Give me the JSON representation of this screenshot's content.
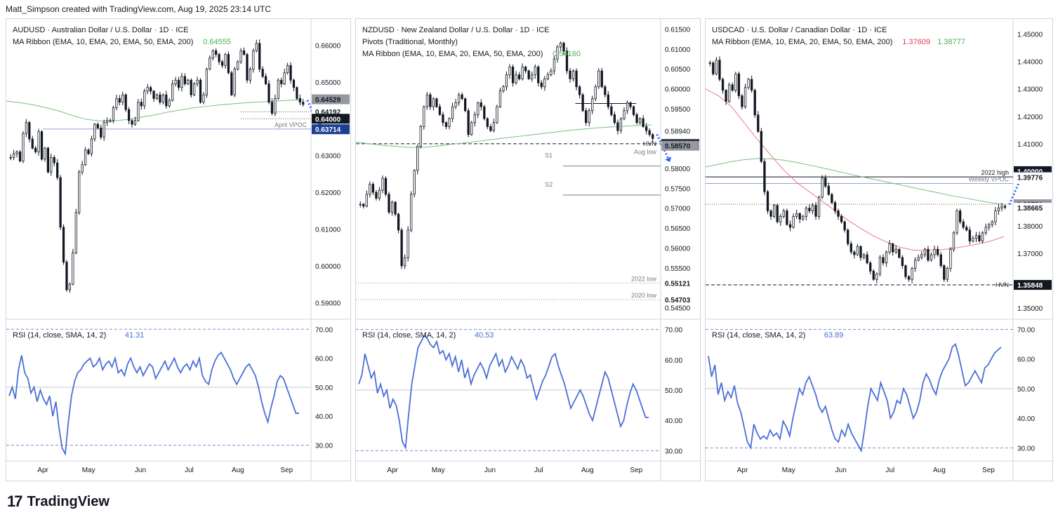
{
  "header": {
    "attribution": "Matt_Simpson created with TradingView.com, Aug 19, 2025 23:14 UTC"
  },
  "footer": {
    "brand": "TradingView",
    "logo_icon": "tradingview-logo-icon"
  },
  "colors": {
    "ma_slow": "#7cbd7d",
    "ma_fast": "#e8798a",
    "rsi": "#4a6fd7",
    "candle": "#131722",
    "arrow": "#2962ff",
    "level_dark": "#131722",
    "level_blue": "#1c3f94",
    "level_gray": "#787b86"
  },
  "chart_data": [
    {
      "type": "candlestick",
      "symbol": "AUDUSD",
      "title": "AUDUSD · Australian Dollar / U.S. Dollar · 1D · ICE",
      "indicator": "MA Ribbon (EMA, 10, EMA, 20, EMA, 50, EMA, 200)",
      "indicator_value": "0.64555",
      "x_ticks": [
        "Apr",
        "May",
        "Jun",
        "Jul",
        "Aug",
        "Sep"
      ],
      "ylim": [
        0.587,
        0.666
      ],
      "y_ticks": [
        "0.66000",
        "0.65000",
        "0.64000",
        "0.63000",
        "0.62000",
        "0.61000",
        "0.60000",
        "0.59000"
      ],
      "price_tags": [
        {
          "label": "0.64529",
          "value": 0.64529,
          "style": "gray"
        },
        {
          "label": "0.64192",
          "value": 0.64192,
          "style": "light"
        },
        {
          "label": "0.64000",
          "value": 0.64,
          "style": "dark"
        },
        {
          "label": "0.63714",
          "value": 0.63714,
          "style": "blue"
        }
      ],
      "levels": [
        {
          "label": "April VPOC",
          "value": 0.6372,
          "dash": "solid",
          "color": "#8fa5d8"
        },
        {
          "label": "",
          "value": 0.64192,
          "dash": "dot",
          "color": "#555"
        },
        {
          "label": "",
          "value": 0.64,
          "dash": "dot",
          "color": "#555"
        }
      ],
      "ohlc_path": [
        0.6295,
        0.6305,
        0.631,
        0.6285,
        0.636,
        0.639,
        0.6345,
        0.632,
        0.631,
        0.6365,
        0.629,
        0.632,
        0.6255,
        0.6295,
        0.628,
        0.624,
        0.6105,
        0.601,
        0.5935,
        0.595,
        0.6035,
        0.6145,
        0.6255,
        0.6275,
        0.6315,
        0.6305,
        0.6345,
        0.6385,
        0.6375,
        0.635,
        0.639,
        0.6395,
        0.6395,
        0.643,
        0.6455,
        0.6445,
        0.6465,
        0.6425,
        0.6395,
        0.6385,
        0.6395,
        0.6445,
        0.6435,
        0.6475,
        0.6485,
        0.6475,
        0.6455,
        0.6465,
        0.6445,
        0.6465,
        0.6435,
        0.645,
        0.6495,
        0.6505,
        0.6485,
        0.6515,
        0.6495,
        0.6505,
        0.6465,
        0.6495,
        0.6505,
        0.6445,
        0.6465,
        0.6535,
        0.6565,
        0.6585,
        0.6575,
        0.6555,
        0.6545,
        0.6575,
        0.6525,
        0.6465,
        0.6535,
        0.6555,
        0.6585,
        0.6575,
        0.6505,
        0.6535,
        0.6585,
        0.6605,
        0.6535,
        0.6515,
        0.6495,
        0.6445,
        0.6415,
        0.6455,
        0.6505,
        0.6495,
        0.6525,
        0.6545,
        0.6505,
        0.6485,
        0.6455,
        0.6445,
        0.6439
      ],
      "ma_slow_path": [
        0.6448,
        0.6444,
        0.6438,
        0.643,
        0.642,
        0.6408,
        0.6398,
        0.6394,
        0.6394,
        0.6398,
        0.6404,
        0.641,
        0.6418,
        0.6424,
        0.643,
        0.6434,
        0.6438,
        0.6441,
        0.6444,
        0.6446,
        0.6448,
        0.645,
        0.6452
      ],
      "rsi": {
        "label": "RSI (14, close, SMA, 14, 2)",
        "value": "41.31",
        "ylim": [
          26,
          72
        ],
        "y_ticks": [
          "70.00",
          "60.00",
          "50.00",
          "40.00",
          "30.00"
        ],
        "values": [
          47,
          50,
          46,
          56,
          61,
          55,
          53,
          48,
          50,
          45,
          49,
          46,
          44,
          47,
          40,
          45,
          36,
          29,
          27,
          38,
          47,
          52,
          55,
          56,
          58,
          59,
          60,
          57,
          58,
          60,
          56,
          58,
          59,
          57,
          60,
          55,
          56,
          54,
          58,
          60,
          57,
          55,
          57,
          54,
          56,
          58,
          57,
          53,
          55,
          57,
          59,
          56,
          58,
          60,
          57,
          55,
          57,
          58,
          56,
          59,
          57,
          60,
          54,
          52,
          51,
          56,
          59,
          61,
          62,
          60,
          58,
          56,
          53,
          51,
          53,
          55,
          57,
          58,
          56,
          54,
          50,
          45,
          41,
          38,
          43,
          47,
          52,
          54,
          53,
          50,
          47,
          44,
          41,
          41
        ]
      },
      "annotations": [
        {
          "type": "arrow",
          "direction": "down-right"
        }
      ]
    },
    {
      "type": "candlestick",
      "symbol": "NZDUSD",
      "title": "NZDUSD · New Zealand Dollar / U.S. Dollar · 1D · ICE",
      "indicator_pivots": "Pivots (Traditional, Monthly)",
      "indicator": "MA Ribbon (EMA, 10, EMA, 20, EMA, 50, EMA, 200)",
      "indicator_value": "0.59160",
      "x_ticks": [
        "Apr",
        "May",
        "Jun",
        "Jul",
        "Aug",
        "Sep"
      ],
      "ylim": [
        0.5435,
        0.6165
      ],
      "y_ticks": [
        "0.61500",
        "0.61000",
        "0.60500",
        "0.60000",
        "0.59500",
        "0.58940",
        "0.58000",
        "0.57500",
        "0.57000",
        "0.56500",
        "0.56000",
        "0.55500",
        "0.54500"
      ],
      "price_tags": [
        {
          "label": "0.58611",
          "value": 0.58611,
          "style": "dark"
        },
        {
          "label": "0.58570",
          "value": 0.5857,
          "style": "gray"
        },
        {
          "label": "0.55121",
          "value": 0.55121,
          "style": "light"
        },
        {
          "label": "0.54703",
          "value": 0.54703,
          "style": "light"
        }
      ],
      "levels": [
        {
          "label": "HVN",
          "value": 0.5862,
          "dash": "dash",
          "color": "#131722"
        },
        {
          "label": "Aug low",
          "value": 0.5857,
          "dash": "none",
          "color": "#787b86"
        },
        {
          "label": "S1",
          "value": 0.5806,
          "dash": "solid",
          "color": "#787b86"
        },
        {
          "label": "S2",
          "value": 0.5733,
          "dash": "solid",
          "color": "#787b86"
        },
        {
          "label": "2022 low",
          "value": 0.5512,
          "dash": "dot",
          "color": "#999"
        },
        {
          "label": "2020 low",
          "value": 0.547,
          "dash": "dot",
          "color": "#999"
        }
      ],
      "ohlc_path": [
        0.571,
        0.5705,
        0.5735,
        0.576,
        0.574,
        0.5725,
        0.5745,
        0.5775,
        0.5735,
        0.569,
        0.5715,
        0.5685,
        0.5645,
        0.5555,
        0.5575,
        0.5645,
        0.5735,
        0.5795,
        0.5855,
        0.5905,
        0.5955,
        0.5985,
        0.5955,
        0.5975,
        0.5955,
        0.5935,
        0.5915,
        0.5905,
        0.5925,
        0.5955,
        0.5965,
        0.5985,
        0.5975,
        0.5945,
        0.5885,
        0.5915,
        0.5935,
        0.5965,
        0.5955,
        0.5925,
        0.5905,
        0.5895,
        0.5915,
        0.5955,
        0.5995,
        0.6005,
        0.6035,
        0.6055,
        0.6015,
        0.6035,
        0.6025,
        0.6055,
        0.6045,
        0.6025,
        0.6035,
        0.6055,
        0.6015,
        0.6005,
        0.6025,
        0.6035,
        0.6045,
        0.6075,
        0.6105,
        0.6115,
        0.6095,
        0.6045,
        0.6025,
        0.6045,
        0.6005,
        0.5985,
        0.5945,
        0.5915,
        0.5945,
        0.5975,
        0.6005,
        0.6045,
        0.6005,
        0.5985,
        0.5955,
        0.5935,
        0.5915,
        0.5895,
        0.5925,
        0.5945,
        0.5965,
        0.5955,
        0.5935,
        0.5915,
        0.5925,
        0.5905,
        0.5895,
        0.5885,
        0.5875
      ],
      "ma_slow_path": [
        0.5866,
        0.5862,
        0.5858,
        0.5855,
        0.5853,
        0.5853,
        0.5856,
        0.586,
        0.5864,
        0.5868,
        0.5872,
        0.5876,
        0.588,
        0.5884,
        0.5888,
        0.5892,
        0.5896,
        0.5899,
        0.5902,
        0.5904,
        0.5906,
        0.5908,
        0.5909
      ],
      "rsi": {
        "label": "RSI (14, close, SMA, 14, 2)",
        "value": "40.53",
        "ylim": [
          28,
          72
        ],
        "y_ticks": [
          "70.00",
          "60.00",
          "50.00",
          "40.00",
          "30.00"
        ],
        "values": [
          52,
          55,
          62,
          58,
          54,
          56,
          49,
          52,
          48,
          50,
          44,
          47,
          45,
          40,
          33,
          31,
          42,
          52,
          58,
          64,
          66,
          68,
          67,
          65,
          64,
          66,
          62,
          63,
          60,
          62,
          58,
          61,
          56,
          60,
          54,
          57,
          52,
          55,
          57,
          59,
          57,
          54,
          58,
          60,
          62,
          58,
          60,
          56,
          58,
          61,
          59,
          57,
          60,
          58,
          54,
          55,
          51,
          47,
          50,
          53,
          55,
          58,
          61,
          62,
          58,
          55,
          52,
          48,
          44,
          46,
          48,
          50,
          48,
          45,
          42,
          40,
          44,
          48,
          52,
          56,
          54,
          50,
          46,
          42,
          38,
          40,
          45,
          49,
          52,
          50,
          47,
          44,
          41,
          41
        ]
      },
      "annotations": [
        {
          "type": "arrow",
          "direction": "down-right"
        }
      ]
    },
    {
      "type": "candlestick",
      "symbol": "USDCAD",
      "title": "USDCAD · U.S. Dollar / Canadian Dollar · 1D · ICE",
      "indicator": "MA Ribbon (EMA, 10, EMA, 20, EMA, 50, EMA, 200)",
      "indicator_values": [
        "1.37609",
        "1.38777"
      ],
      "x_ticks": [
        "Apr",
        "May",
        "Jun",
        "Jul",
        "Aug",
        "Sep"
      ],
      "ylim": [
        1.348,
        1.454
      ],
      "y_ticks": [
        "1.45000",
        "1.44000",
        "1.43000",
        "1.42000",
        "1.41000",
        "1.38000",
        "1.37000",
        "1.35000"
      ],
      "price_tags": [
        {
          "label": "1.40000",
          "value": 1.4,
          "style": "dark"
        },
        {
          "label": "1.39790",
          "value": 1.3979,
          "style": "blue"
        },
        {
          "label": "1.39776",
          "value": 1.39776,
          "style": "light"
        },
        {
          "label": "1.38791",
          "value": 1.38791,
          "style": "gray"
        },
        {
          "label": "1.38665",
          "value": 1.38665,
          "style": "light"
        },
        {
          "label": "1.35848",
          "value": 1.35848,
          "style": "dark"
        }
      ],
      "levels": [
        {
          "label": "2022 high",
          "value": 1.3979,
          "dash": "solid",
          "color": "#131722"
        },
        {
          "label": "Weekly VPOC",
          "value": 1.3955,
          "dash": "solid",
          "color": "#8fa5d8"
        },
        {
          "label": "HVN",
          "value": 1.3585,
          "dash": "dash",
          "color": "#131722"
        },
        {
          "label": "",
          "value": 1.3879,
          "dash": "dot",
          "color": "#555"
        }
      ],
      "ohlc_path": [
        1.4395,
        1.4355,
        1.4405,
        1.4335,
        1.4295,
        1.4255,
        1.4315,
        1.4295,
        1.4355,
        1.4275,
        1.4235,
        1.4305,
        1.4335,
        1.4295,
        1.4205,
        1.4145,
        1.4035,
        1.3925,
        1.3855,
        1.3835,
        1.3875,
        1.3815,
        1.3835,
        1.3855,
        1.3805,
        1.3795,
        1.3835,
        1.3845,
        1.3825,
        1.3835,
        1.3865,
        1.3855,
        1.3875,
        1.3835,
        1.3905,
        1.3975,
        1.3945,
        1.3915,
        1.3885,
        1.3855,
        1.3835,
        1.3815,
        1.3785,
        1.3735,
        1.3705,
        1.3695,
        1.3725,
        1.3685,
        1.3695,
        1.3665,
        1.3635,
        1.3605,
        1.3625,
        1.3685,
        1.3665,
        1.3705,
        1.3735,
        1.3705,
        1.3715,
        1.3685,
        1.3655,
        1.3615,
        1.3605,
        1.3645,
        1.3675,
        1.3685,
        1.3695,
        1.3715,
        1.3675,
        1.3695,
        1.3715,
        1.3695,
        1.3655,
        1.3605,
        1.3645,
        1.3715,
        1.3775,
        1.3855,
        1.3815,
        1.3795,
        1.3785,
        1.3745,
        1.3755,
        1.3765,
        1.3745,
        1.3775,
        1.3795,
        1.3805,
        1.3815,
        1.3855,
        1.3865,
        1.3872,
        1.3868
      ],
      "ma_fast_path": [
        1.43,
        1.4275,
        1.4235,
        1.4175,
        1.4115,
        1.406,
        1.4005,
        1.396,
        1.3925,
        1.389,
        1.3855,
        1.382,
        1.379,
        1.3762,
        1.374,
        1.3722,
        1.3712,
        1.371,
        1.3712,
        1.3718,
        1.3725,
        1.3734,
        1.3745,
        1.3761
      ],
      "ma_slow_path": [
        1.4015,
        1.4025,
        1.4035,
        1.4042,
        1.4046,
        1.4045,
        1.404,
        1.4032,
        1.4022,
        1.4012,
        1.4001,
        1.399,
        1.398,
        1.397,
        1.396,
        1.395,
        1.394,
        1.393,
        1.392,
        1.391,
        1.3902,
        1.3893,
        1.3885,
        1.3879
      ],
      "rsi": {
        "label": "RSI (14, close, SMA, 14, 2)",
        "value": "63.89",
        "ylim": [
          27,
          72
        ],
        "y_ticks": [
          "70.00",
          "60.00",
          "50.00",
          "40.00",
          "30.00"
        ],
        "values": [
          61,
          54,
          58,
          48,
          52,
          46,
          49,
          47,
          51,
          45,
          42,
          37,
          32,
          30,
          38,
          35,
          33,
          34,
          33,
          36,
          34,
          35,
          33,
          39,
          37,
          34,
          40,
          45,
          50,
          48,
          52,
          54,
          51,
          48,
          44,
          42,
          44,
          40,
          36,
          33,
          32,
          36,
          34,
          38,
          35,
          33,
          31,
          29,
          36,
          44,
          50,
          48,
          46,
          52,
          49,
          46,
          40,
          42,
          46,
          45,
          50,
          48,
          44,
          40,
          42,
          46,
          52,
          55,
          53,
          50,
          48,
          53,
          56,
          58,
          60,
          64,
          65,
          61,
          56,
          51,
          52,
          54,
          56,
          54,
          52,
          57,
          58,
          60,
          62,
          63,
          64
        ]
      },
      "annotations": [
        {
          "type": "arrow",
          "direction": "up-right"
        }
      ]
    }
  ]
}
